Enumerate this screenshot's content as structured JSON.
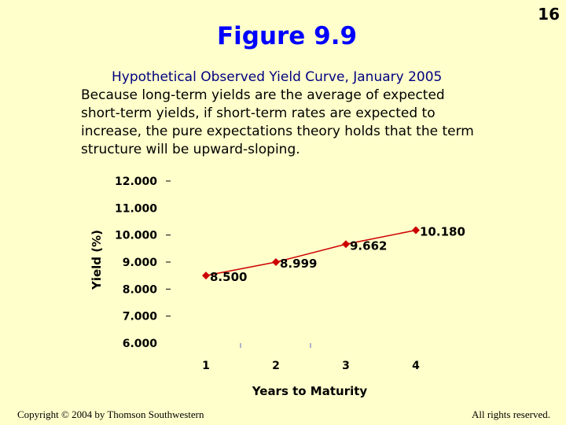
{
  "slide": {
    "page_number": "16",
    "figure_title": "Figure 9.9",
    "description": "Because long-term yields are the average of expected short-term yields, if short-term rates are expected to increase, the pure expectations theory holds that the term structure will be upward-sloping.",
    "copyright": "Copyright © 2004 by Thomson Southwestern",
    "rights": "All rights reserved."
  },
  "chart_data": {
    "type": "line",
    "title": "Hypothetical Observed Yield Curve, January 2005",
    "xlabel": "Years to Maturity",
    "ylabel": "Yield (%)",
    "categories": [
      "1",
      "2",
      "3",
      "4"
    ],
    "y_ticks": [
      "6.000",
      "7.000",
      "8.000",
      "9.000",
      "10.000",
      "11.000",
      "12.000"
    ],
    "ylim": [
      6,
      12
    ],
    "series": [
      {
        "values": [
          8.5,
          8.999,
          9.662,
          10.18
        ],
        "labels": [
          "8.500",
          "8.999",
          "9.662",
          "10.180"
        ],
        "color": "#cc0000",
        "marker_color": "#cc0000"
      }
    ],
    "grid": false,
    "legend": "none"
  }
}
